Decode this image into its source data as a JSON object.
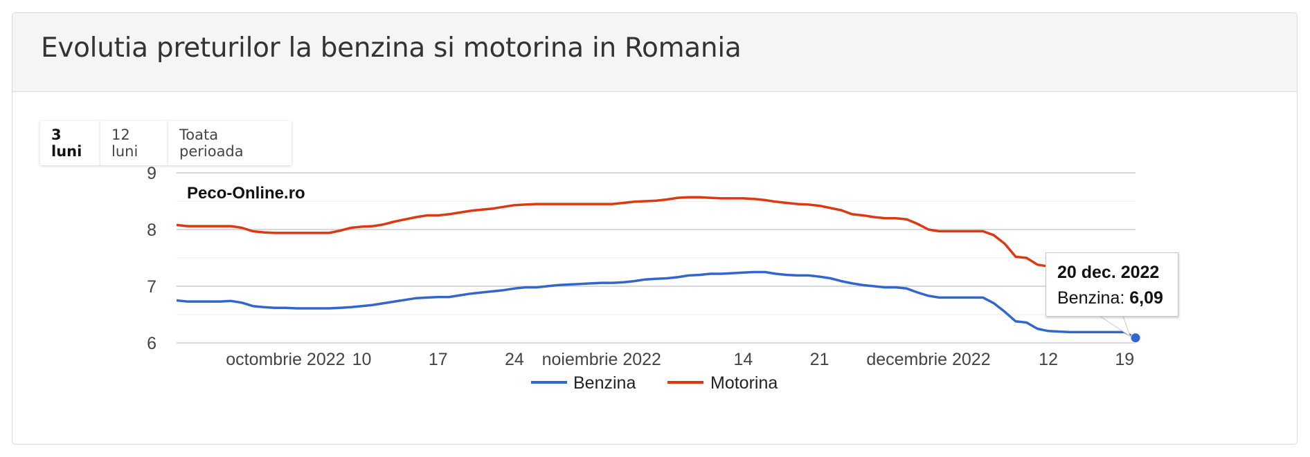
{
  "panel": {
    "title": "Evolutia preturilor la benzina si motorina in Romania"
  },
  "range_tabs": [
    {
      "label": "3 luni",
      "active": true
    },
    {
      "label": "12 luni",
      "active": false
    },
    {
      "label": "Toata perioada",
      "active": false
    }
  ],
  "tooltip": {
    "date": "20 dec. 2022",
    "series_label": "Benzina:",
    "value": "6,09"
  },
  "colors": {
    "benzina": "#3366cc",
    "motorina": "#dc3912",
    "grid": "#cccccc",
    "minor_grid": "#ebebeb"
  },
  "chart_data": {
    "type": "line",
    "watermark": "Peco-Online.ro",
    "x_range": [
      "2022-09-23",
      "2022-12-20"
    ],
    "ylim": [
      6,
      9
    ],
    "y_ticks": [
      6,
      7,
      8,
      9
    ],
    "x_tick_labels": [
      {
        "date": "2022-10-03",
        "label": "octombrie 2022"
      },
      {
        "date": "2022-10-10",
        "label": "10"
      },
      {
        "date": "2022-10-17",
        "label": "17"
      },
      {
        "date": "2022-10-24",
        "label": "24"
      },
      {
        "date": "2022-11-01",
        "label": "noiembrie 2022"
      },
      {
        "date": "2022-11-14",
        "label": "14"
      },
      {
        "date": "2022-11-21",
        "label": "21"
      },
      {
        "date": "2022-12-01",
        "label": "decembrie 2022"
      },
      {
        "date": "2022-12-12",
        "label": "12"
      },
      {
        "date": "2022-12-19",
        "label": "19"
      }
    ],
    "legend_position": "bottom",
    "series": [
      {
        "name": "Benzina",
        "color": "#3366cc",
        "points": [
          [
            "2022-09-23",
            6.75
          ],
          [
            "2022-09-24",
            6.73
          ],
          [
            "2022-09-26",
            6.73
          ],
          [
            "2022-09-27",
            6.73
          ],
          [
            "2022-09-28",
            6.74
          ],
          [
            "2022-09-29",
            6.71
          ],
          [
            "2022-09-30",
            6.65
          ],
          [
            "2022-10-01",
            6.63
          ],
          [
            "2022-10-02",
            6.62
          ],
          [
            "2022-10-03",
            6.62
          ],
          [
            "2022-10-04",
            6.61
          ],
          [
            "2022-10-06",
            6.61
          ],
          [
            "2022-10-07",
            6.61
          ],
          [
            "2022-10-08",
            6.62
          ],
          [
            "2022-10-09",
            6.63
          ],
          [
            "2022-10-10",
            6.65
          ],
          [
            "2022-10-11",
            6.67
          ],
          [
            "2022-10-12",
            6.7
          ],
          [
            "2022-10-13",
            6.73
          ],
          [
            "2022-10-14",
            6.76
          ],
          [
            "2022-10-15",
            6.79
          ],
          [
            "2022-10-16",
            6.8
          ],
          [
            "2022-10-17",
            6.81
          ],
          [
            "2022-10-18",
            6.81
          ],
          [
            "2022-10-19",
            6.84
          ],
          [
            "2022-10-20",
            6.87
          ],
          [
            "2022-10-21",
            6.89
          ],
          [
            "2022-10-22",
            6.91
          ],
          [
            "2022-10-23",
            6.93
          ],
          [
            "2022-10-24",
            6.96
          ],
          [
            "2022-10-25",
            6.98
          ],
          [
            "2022-10-26",
            6.98
          ],
          [
            "2022-10-27",
            7.0
          ],
          [
            "2022-10-28",
            7.02
          ],
          [
            "2022-10-29",
            7.03
          ],
          [
            "2022-10-30",
            7.04
          ],
          [
            "2022-10-31",
            7.05
          ],
          [
            "2022-11-01",
            7.06
          ],
          [
            "2022-11-02",
            7.06
          ],
          [
            "2022-11-03",
            7.07
          ],
          [
            "2022-11-04",
            7.09
          ],
          [
            "2022-11-05",
            7.12
          ],
          [
            "2022-11-06",
            7.13
          ],
          [
            "2022-11-07",
            7.14
          ],
          [
            "2022-11-08",
            7.16
          ],
          [
            "2022-11-09",
            7.19
          ],
          [
            "2022-11-10",
            7.2
          ],
          [
            "2022-11-11",
            7.22
          ],
          [
            "2022-11-12",
            7.22
          ],
          [
            "2022-11-13",
            7.23
          ],
          [
            "2022-11-14",
            7.24
          ],
          [
            "2022-11-15",
            7.25
          ],
          [
            "2022-11-16",
            7.25
          ],
          [
            "2022-11-17",
            7.22
          ],
          [
            "2022-11-18",
            7.2
          ],
          [
            "2022-11-19",
            7.19
          ],
          [
            "2022-11-20",
            7.19
          ],
          [
            "2022-11-21",
            7.17
          ],
          [
            "2022-11-22",
            7.14
          ],
          [
            "2022-11-23",
            7.09
          ],
          [
            "2022-11-24",
            7.05
          ],
          [
            "2022-11-25",
            7.02
          ],
          [
            "2022-11-26",
            7.0
          ],
          [
            "2022-11-27",
            6.98
          ],
          [
            "2022-11-28",
            6.98
          ],
          [
            "2022-11-29",
            6.96
          ],
          [
            "2022-11-30",
            6.89
          ],
          [
            "2022-12-01",
            6.83
          ],
          [
            "2022-12-02",
            6.8
          ],
          [
            "2022-12-03",
            6.8
          ],
          [
            "2022-12-04",
            6.8
          ],
          [
            "2022-12-05",
            6.8
          ],
          [
            "2022-12-06",
            6.8
          ],
          [
            "2022-12-07",
            6.7
          ],
          [
            "2022-12-08",
            6.55
          ],
          [
            "2022-12-09",
            6.38
          ],
          [
            "2022-12-10",
            6.36
          ],
          [
            "2022-12-11",
            6.25
          ],
          [
            "2022-12-12",
            6.21
          ],
          [
            "2022-12-13",
            6.2
          ],
          [
            "2022-12-14",
            6.19
          ],
          [
            "2022-12-15",
            6.19
          ],
          [
            "2022-12-16",
            6.19
          ],
          [
            "2022-12-17",
            6.19
          ],
          [
            "2022-12-18",
            6.19
          ],
          [
            "2022-12-19",
            6.19
          ],
          [
            "2022-12-20",
            6.09
          ]
        ]
      },
      {
        "name": "Motorina",
        "color": "#dc3912",
        "points": [
          [
            "2022-09-23",
            8.08
          ],
          [
            "2022-09-24",
            8.06
          ],
          [
            "2022-09-26",
            8.06
          ],
          [
            "2022-09-27",
            8.06
          ],
          [
            "2022-09-28",
            8.06
          ],
          [
            "2022-09-29",
            8.03
          ],
          [
            "2022-09-30",
            7.97
          ],
          [
            "2022-10-01",
            7.95
          ],
          [
            "2022-10-02",
            7.94
          ],
          [
            "2022-10-06",
            7.94
          ],
          [
            "2022-10-07",
            7.94
          ],
          [
            "2022-10-08",
            7.98
          ],
          [
            "2022-10-09",
            8.03
          ],
          [
            "2022-10-10",
            8.05
          ],
          [
            "2022-10-11",
            8.06
          ],
          [
            "2022-10-12",
            8.09
          ],
          [
            "2022-10-13",
            8.14
          ],
          [
            "2022-10-14",
            8.18
          ],
          [
            "2022-10-15",
            8.22
          ],
          [
            "2022-10-16",
            8.25
          ],
          [
            "2022-10-17",
            8.25
          ],
          [
            "2022-10-18",
            8.27
          ],
          [
            "2022-10-19",
            8.3
          ],
          [
            "2022-10-20",
            8.33
          ],
          [
            "2022-10-21",
            8.35
          ],
          [
            "2022-10-22",
            8.37
          ],
          [
            "2022-10-23",
            8.4
          ],
          [
            "2022-10-24",
            8.43
          ],
          [
            "2022-10-25",
            8.44
          ],
          [
            "2022-10-26",
            8.45
          ],
          [
            "2022-10-27",
            8.45
          ],
          [
            "2022-11-01",
            8.45
          ],
          [
            "2022-11-02",
            8.45
          ],
          [
            "2022-11-03",
            8.47
          ],
          [
            "2022-11-04",
            8.49
          ],
          [
            "2022-11-05",
            8.5
          ],
          [
            "2022-11-06",
            8.51
          ],
          [
            "2022-11-07",
            8.53
          ],
          [
            "2022-11-08",
            8.56
          ],
          [
            "2022-11-09",
            8.57
          ],
          [
            "2022-11-10",
            8.57
          ],
          [
            "2022-11-11",
            8.56
          ],
          [
            "2022-11-12",
            8.55
          ],
          [
            "2022-11-13",
            8.55
          ],
          [
            "2022-11-14",
            8.55
          ],
          [
            "2022-11-15",
            8.54
          ],
          [
            "2022-11-16",
            8.52
          ],
          [
            "2022-11-17",
            8.49
          ],
          [
            "2022-11-18",
            8.47
          ],
          [
            "2022-11-19",
            8.45
          ],
          [
            "2022-11-20",
            8.44
          ],
          [
            "2022-11-21",
            8.42
          ],
          [
            "2022-11-22",
            8.38
          ],
          [
            "2022-11-23",
            8.34
          ],
          [
            "2022-11-24",
            8.27
          ],
          [
            "2022-11-25",
            8.25
          ],
          [
            "2022-11-26",
            8.22
          ],
          [
            "2022-11-27",
            8.2
          ],
          [
            "2022-11-28",
            8.2
          ],
          [
            "2022-11-29",
            8.18
          ],
          [
            "2022-11-30",
            8.1
          ],
          [
            "2022-12-01",
            8.0
          ],
          [
            "2022-12-02",
            7.97
          ],
          [
            "2022-12-03",
            7.97
          ],
          [
            "2022-12-05",
            7.97
          ],
          [
            "2022-12-06",
            7.97
          ],
          [
            "2022-12-07",
            7.9
          ],
          [
            "2022-12-08",
            7.75
          ],
          [
            "2022-12-09",
            7.52
          ],
          [
            "2022-12-10",
            7.5
          ],
          [
            "2022-12-11",
            7.38
          ],
          [
            "2022-12-12",
            7.35
          ],
          [
            "2022-12-13",
            7.34
          ],
          [
            "2022-12-15",
            7.34
          ],
          [
            "2022-12-16",
            7.34
          ],
          [
            "2022-12-17",
            7.34
          ],
          [
            "2022-12-18",
            7.34
          ],
          [
            "2022-12-19",
            7.34
          ],
          [
            "2022-12-20",
            7.34
          ]
        ]
      }
    ]
  }
}
